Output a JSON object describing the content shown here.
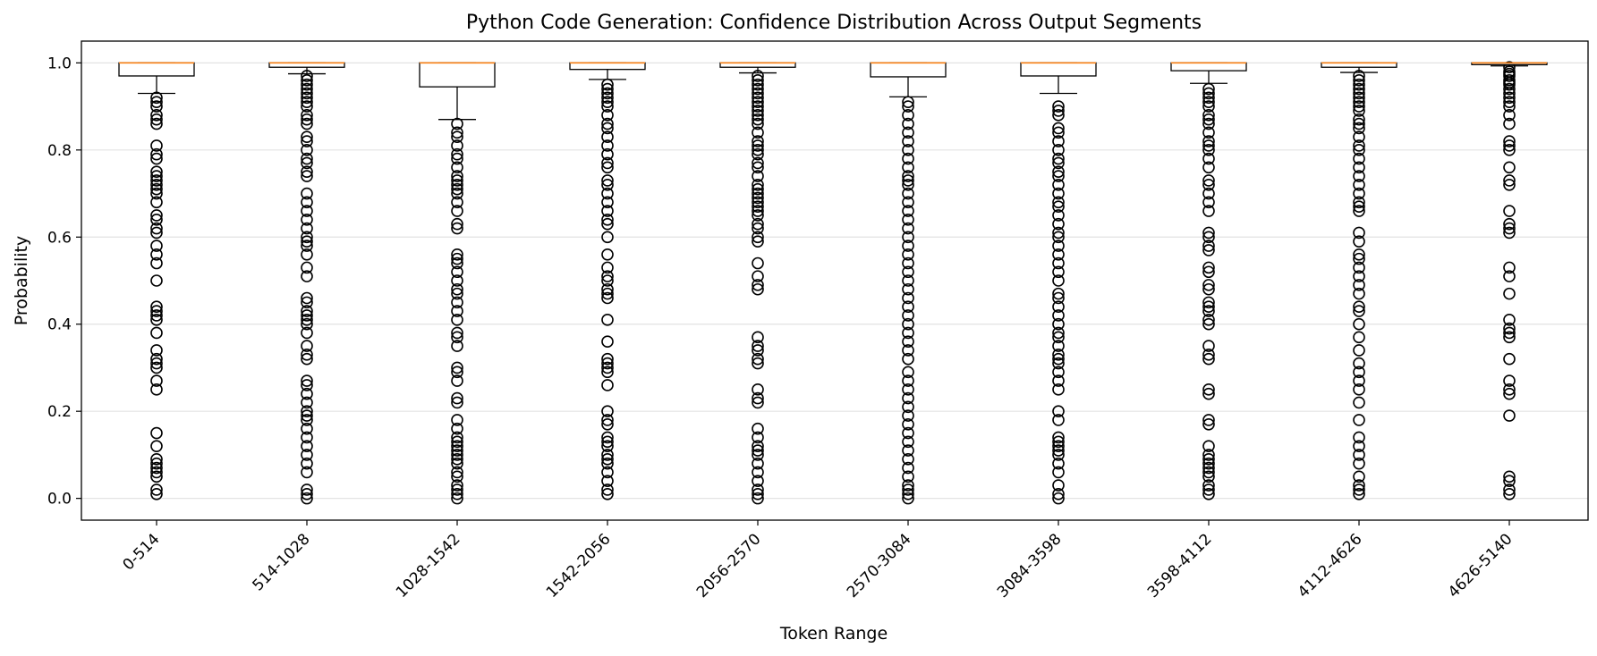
{
  "chart_data": {
    "type": "box",
    "title": "Python Code Generation: Confidence Distribution Across Output Segments",
    "xlabel": "Token Range",
    "ylabel": "Probability",
    "ylim": [
      -0.05,
      1.05
    ],
    "yticks": [
      "0.0",
      "0.2",
      "0.4",
      "0.6",
      "0.8",
      "1.0"
    ],
    "grid": "horizontal",
    "categories": [
      "0-514",
      "514-1028",
      "1028-1542",
      "1542-2056",
      "2056-2570",
      "2570-3084",
      "3084-3598",
      "3598-4112",
      "4112-4626",
      "4626-5140"
    ],
    "boxes": [
      {
        "q1": 0.97,
        "median": 1.0,
        "q3": 1.0,
        "whisker_low": 0.93,
        "whisker_high": 1.0,
        "outliers": [
          0.92,
          0.91,
          0.9,
          0.88,
          0.87,
          0.86,
          0.81,
          0.79,
          0.78,
          0.75,
          0.74,
          0.73,
          0.72,
          0.71,
          0.7,
          0.68,
          0.65,
          0.64,
          0.62,
          0.61,
          0.58,
          0.56,
          0.54,
          0.5,
          0.44,
          0.43,
          0.42,
          0.41,
          0.38,
          0.34,
          0.32,
          0.31,
          0.3,
          0.27,
          0.25,
          0.15,
          0.12,
          0.09,
          0.08,
          0.07,
          0.06,
          0.05,
          0.02,
          0.01
        ]
      },
      {
        "q1": 0.99,
        "median": 1.0,
        "q3": 1.0,
        "whisker_low": 0.975,
        "whisker_high": 1.0,
        "outliers": [
          0.97,
          0.96,
          0.95,
          0.94,
          0.93,
          0.92,
          0.91,
          0.9,
          0.88,
          0.87,
          0.86,
          0.83,
          0.82,
          0.8,
          0.78,
          0.77,
          0.75,
          0.74,
          0.7,
          0.68,
          0.66,
          0.64,
          0.62,
          0.6,
          0.59,
          0.58,
          0.56,
          0.53,
          0.51,
          0.46,
          0.45,
          0.43,
          0.42,
          0.41,
          0.4,
          0.38,
          0.35,
          0.33,
          0.32,
          0.27,
          0.26,
          0.24,
          0.22,
          0.2,
          0.19,
          0.18,
          0.16,
          0.14,
          0.12,
          0.1,
          0.08,
          0.06,
          0.02,
          0.01,
          0.0
        ]
      },
      {
        "q1": 0.945,
        "median": 1.0,
        "q3": 1.0,
        "whisker_low": 0.87,
        "whisker_high": 1.0,
        "outliers": [
          0.86,
          0.84,
          0.83,
          0.81,
          0.79,
          0.78,
          0.76,
          0.74,
          0.73,
          0.72,
          0.71,
          0.7,
          0.68,
          0.66,
          0.63,
          0.62,
          0.56,
          0.55,
          0.54,
          0.52,
          0.5,
          0.48,
          0.47,
          0.45,
          0.43,
          0.41,
          0.38,
          0.37,
          0.35,
          0.3,
          0.29,
          0.27,
          0.23,
          0.22,
          0.18,
          0.16,
          0.14,
          0.13,
          0.12,
          0.11,
          0.1,
          0.09,
          0.08,
          0.06,
          0.05,
          0.03,
          0.02,
          0.01,
          0.0
        ]
      },
      {
        "q1": 0.985,
        "median": 1.0,
        "q3": 1.0,
        "whisker_low": 0.962,
        "whisker_high": 1.0,
        "outliers": [
          0.95,
          0.94,
          0.93,
          0.92,
          0.91,
          0.9,
          0.88,
          0.86,
          0.85,
          0.83,
          0.81,
          0.79,
          0.77,
          0.76,
          0.73,
          0.72,
          0.7,
          0.68,
          0.66,
          0.64,
          0.63,
          0.6,
          0.56,
          0.53,
          0.51,
          0.5,
          0.48,
          0.47,
          0.46,
          0.41,
          0.36,
          0.32,
          0.31,
          0.3,
          0.29,
          0.26,
          0.2,
          0.18,
          0.17,
          0.14,
          0.13,
          0.12,
          0.1,
          0.09,
          0.08,
          0.06,
          0.04,
          0.02,
          0.01
        ]
      },
      {
        "q1": 0.99,
        "median": 1.0,
        "q3": 1.0,
        "whisker_low": 0.977,
        "whisker_high": 1.0,
        "outliers": [
          0.97,
          0.96,
          0.95,
          0.94,
          0.93,
          0.92,
          0.91,
          0.9,
          0.89,
          0.88,
          0.87,
          0.86,
          0.84,
          0.82,
          0.81,
          0.8,
          0.79,
          0.77,
          0.76,
          0.74,
          0.72,
          0.71,
          0.7,
          0.69,
          0.68,
          0.67,
          0.66,
          0.65,
          0.63,
          0.62,
          0.6,
          0.59,
          0.54,
          0.51,
          0.49,
          0.48,
          0.37,
          0.35,
          0.34,
          0.32,
          0.31,
          0.25,
          0.23,
          0.22,
          0.16,
          0.14,
          0.12,
          0.11,
          0.1,
          0.08,
          0.06,
          0.04,
          0.02,
          0.01,
          0.0
        ]
      },
      {
        "q1": 0.968,
        "median": 1.0,
        "q3": 1.0,
        "whisker_low": 0.922,
        "whisker_high": 1.0,
        "outliers": [
          0.91,
          0.9,
          0.88,
          0.86,
          0.84,
          0.82,
          0.8,
          0.78,
          0.76,
          0.74,
          0.73,
          0.72,
          0.7,
          0.68,
          0.66,
          0.64,
          0.62,
          0.6,
          0.58,
          0.56,
          0.54,
          0.52,
          0.5,
          0.48,
          0.46,
          0.44,
          0.42,
          0.4,
          0.38,
          0.36,
          0.34,
          0.32,
          0.29,
          0.27,
          0.25,
          0.23,
          0.21,
          0.19,
          0.17,
          0.15,
          0.13,
          0.11,
          0.09,
          0.07,
          0.05,
          0.03,
          0.02,
          0.01,
          0.0
        ]
      },
      {
        "q1": 0.97,
        "median": 1.0,
        "q3": 1.0,
        "whisker_low": 0.93,
        "whisker_high": 1.0,
        "outliers": [
          0.9,
          0.89,
          0.88,
          0.85,
          0.84,
          0.82,
          0.8,
          0.78,
          0.77,
          0.75,
          0.74,
          0.72,
          0.7,
          0.68,
          0.67,
          0.65,
          0.63,
          0.61,
          0.6,
          0.58,
          0.56,
          0.54,
          0.52,
          0.5,
          0.47,
          0.46,
          0.44,
          0.42,
          0.4,
          0.38,
          0.37,
          0.35,
          0.33,
          0.32,
          0.31,
          0.29,
          0.27,
          0.25,
          0.2,
          0.18,
          0.14,
          0.13,
          0.12,
          0.11,
          0.1,
          0.08,
          0.06,
          0.03,
          0.01,
          0.0
        ]
      },
      {
        "q1": 0.982,
        "median": 1.0,
        "q3": 1.0,
        "whisker_low": 0.953,
        "whisker_high": 1.0,
        "outliers": [
          0.94,
          0.93,
          0.92,
          0.91,
          0.9,
          0.88,
          0.87,
          0.86,
          0.84,
          0.82,
          0.81,
          0.8,
          0.78,
          0.76,
          0.73,
          0.72,
          0.7,
          0.68,
          0.66,
          0.61,
          0.6,
          0.58,
          0.57,
          0.53,
          0.52,
          0.49,
          0.48,
          0.45,
          0.44,
          0.43,
          0.41,
          0.4,
          0.35,
          0.33,
          0.32,
          0.25,
          0.24,
          0.18,
          0.17,
          0.12,
          0.1,
          0.09,
          0.08,
          0.07,
          0.06,
          0.05,
          0.03,
          0.02,
          0.01
        ]
      },
      {
        "q1": 0.99,
        "median": 1.0,
        "q3": 1.0,
        "whisker_low": 0.978,
        "whisker_high": 1.0,
        "outliers": [
          0.97,
          0.96,
          0.95,
          0.94,
          0.93,
          0.92,
          0.91,
          0.9,
          0.89,
          0.87,
          0.86,
          0.85,
          0.83,
          0.81,
          0.8,
          0.78,
          0.76,
          0.74,
          0.72,
          0.7,
          0.68,
          0.67,
          0.66,
          0.61,
          0.59,
          0.56,
          0.55,
          0.53,
          0.51,
          0.49,
          0.47,
          0.44,
          0.43,
          0.4,
          0.37,
          0.34,
          0.31,
          0.29,
          0.27,
          0.25,
          0.22,
          0.18,
          0.14,
          0.12,
          0.1,
          0.08,
          0.05,
          0.03,
          0.02,
          0.01
        ]
      },
      {
        "q1": 0.996,
        "median": 1.0,
        "q3": 1.0,
        "whisker_low": 0.993,
        "whisker_high": 1.0,
        "outliers": [
          0.99,
          0.98,
          0.975,
          0.97,
          0.96,
          0.955,
          0.95,
          0.94,
          0.93,
          0.92,
          0.91,
          0.9,
          0.88,
          0.86,
          0.82,
          0.81,
          0.8,
          0.76,
          0.73,
          0.72,
          0.66,
          0.63,
          0.62,
          0.61,
          0.53,
          0.51,
          0.47,
          0.41,
          0.39,
          0.38,
          0.37,
          0.32,
          0.27,
          0.25,
          0.24,
          0.19,
          0.05,
          0.04,
          0.02,
          0.01
        ]
      }
    ]
  }
}
